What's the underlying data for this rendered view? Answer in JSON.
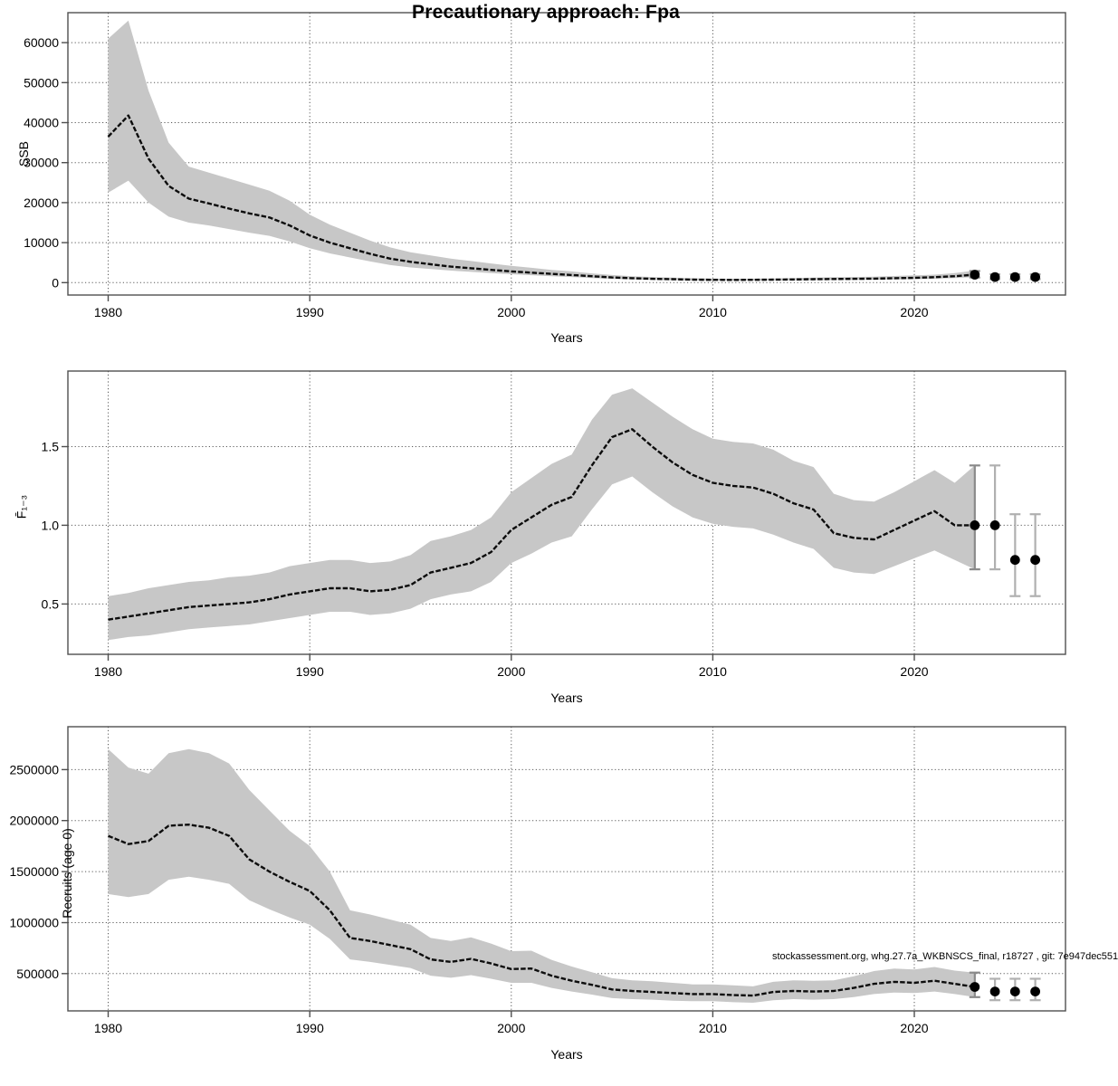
{
  "title": "Precautionary approach: Fpa",
  "xlabel": "Years",
  "annotation": "stockassessment.org, whg.27.7a_WKBNSCS_final, r18727 , git: 7e947dec551",
  "colors": {
    "band": "#c7c7c7",
    "line": "#0d0d0d",
    "grid": "#5a5a5a",
    "frame": "#4f4f4f",
    "errorbar": "#b0b0b0",
    "errorbar_dark": "#8a8a8a",
    "point": "#000000"
  },
  "chart_data": [
    {
      "type": "line",
      "name": "ssb",
      "ylabel": "SSB",
      "xlabel": "Years",
      "grid": true,
      "xlim": [
        1978,
        2027.5
      ],
      "ylim": [
        -3100,
        67500
      ],
      "xticks": [
        1980,
        1990,
        2000,
        2010,
        2020
      ],
      "xtick_labels": [
        "1980",
        "1990",
        "2000",
        "2010",
        "2020"
      ],
      "yticks": [
        0,
        10000,
        20000,
        30000,
        40000,
        50000,
        60000
      ],
      "ytick_labels": [
        "0",
        "10000",
        "20000",
        "30000",
        "40000",
        "50000",
        "60000"
      ],
      "x": [
        1980,
        1981,
        1982,
        1983,
        1984,
        1985,
        1986,
        1987,
        1988,
        1989,
        1990,
        1991,
        1992,
        1993,
        1994,
        1995,
        1996,
        1997,
        1998,
        1999,
        2000,
        2001,
        2002,
        2003,
        2004,
        2005,
        2006,
        2007,
        2008,
        2009,
        2010,
        2011,
        2012,
        2013,
        2014,
        2015,
        2016,
        2017,
        2018,
        2019,
        2020,
        2021,
        2022,
        2023
      ],
      "series": [
        {
          "name": "estimate",
          "values": [
            36500,
            41800,
            31000,
            24200,
            21000,
            19800,
            18500,
            17300,
            16300,
            14300,
            11800,
            10000,
            8600,
            7200,
            6000,
            5200,
            4600,
            4000,
            3600,
            3200,
            2800,
            2500,
            2200,
            1900,
            1600,
            1300,
            1100,
            950,
            850,
            750,
            700,
            680,
            700,
            750,
            800,
            850,
            900,
            950,
            1000,
            1100,
            1200,
            1350,
            1600,
            2000
          ]
        },
        {
          "name": "lower",
          "values": [
            22500,
            25500,
            20000,
            16500,
            15000,
            14300,
            13400,
            12500,
            11700,
            10300,
            8600,
            7300,
            6300,
            5300,
            4400,
            3800,
            3400,
            3000,
            2700,
            2400,
            2100,
            1850,
            1600,
            1400,
            1150,
            950,
            800,
            700,
            620,
            550,
            510,
            500,
            510,
            550,
            580,
            620,
            650,
            690,
            730,
            800,
            870,
            980,
            1150,
            1400
          ]
        },
        {
          "name": "upper",
          "values": [
            61000,
            65500,
            48000,
            35000,
            29000,
            27500,
            26000,
            24500,
            23000,
            20500,
            17000,
            14500,
            12500,
            10500,
            8800,
            7600,
            6800,
            6000,
            5400,
            4800,
            4200,
            3700,
            3200,
            2800,
            2300,
            1900,
            1600,
            1400,
            1250,
            1100,
            1000,
            980,
            1000,
            1050,
            1150,
            1250,
            1350,
            1400,
            1500,
            1650,
            1800,
            2000,
            2400,
            3000
          ]
        }
      ],
      "forecast": {
        "years": [
          2023,
          2024,
          2025,
          2026
        ],
        "values": [
          2000,
          1400,
          1400,
          1400
        ],
        "lower": [
          1300,
          850,
          850,
          850
        ],
        "upper": [
          2900,
          2100,
          2100,
          2100
        ]
      }
    },
    {
      "type": "line",
      "name": "fbar",
      "ylabel": "F̄₁₋₃",
      "xlabel": "Years",
      "grid": true,
      "xlim": [
        1978,
        2027.5
      ],
      "ylim": [
        0.18,
        1.98
      ],
      "xticks": [
        1980,
        1990,
        2000,
        2010,
        2020
      ],
      "xtick_labels": [
        "1980",
        "1990",
        "2000",
        "2010",
        "2020"
      ],
      "yticks": [
        0.5,
        1.0,
        1.5
      ],
      "ytick_labels": [
        "0.5",
        "1.0",
        "1.5"
      ],
      "x": [
        1980,
        1981,
        1982,
        1983,
        1984,
        1985,
        1986,
        1987,
        1988,
        1989,
        1990,
        1991,
        1992,
        1993,
        1994,
        1995,
        1996,
        1997,
        1998,
        1999,
        2000,
        2001,
        2002,
        2003,
        2004,
        2005,
        2006,
        2007,
        2008,
        2009,
        2010,
        2011,
        2012,
        2013,
        2014,
        2015,
        2016,
        2017,
        2018,
        2019,
        2020,
        2021,
        2022,
        2023
      ],
      "series": [
        {
          "name": "estimate",
          "values": [
            0.4,
            0.42,
            0.44,
            0.46,
            0.48,
            0.49,
            0.5,
            0.51,
            0.53,
            0.56,
            0.58,
            0.6,
            0.6,
            0.58,
            0.59,
            0.62,
            0.7,
            0.73,
            0.76,
            0.83,
            0.97,
            1.05,
            1.13,
            1.18,
            1.38,
            1.56,
            1.61,
            1.5,
            1.4,
            1.32,
            1.27,
            1.25,
            1.24,
            1.2,
            1.14,
            1.1,
            0.95,
            0.92,
            0.91,
            0.97,
            1.03,
            1.09,
            1.0,
            1.0
          ]
        },
        {
          "name": "lower",
          "values": [
            0.27,
            0.29,
            0.3,
            0.32,
            0.34,
            0.35,
            0.36,
            0.37,
            0.39,
            0.41,
            0.43,
            0.45,
            0.45,
            0.43,
            0.44,
            0.47,
            0.53,
            0.56,
            0.58,
            0.64,
            0.76,
            0.82,
            0.89,
            0.93,
            1.1,
            1.26,
            1.31,
            1.21,
            1.12,
            1.05,
            1.01,
            0.99,
            0.98,
            0.94,
            0.89,
            0.85,
            0.73,
            0.7,
            0.69,
            0.74,
            0.79,
            0.84,
            0.78,
            0.72
          ]
        },
        {
          "name": "upper",
          "values": [
            0.55,
            0.57,
            0.6,
            0.62,
            0.64,
            0.65,
            0.67,
            0.68,
            0.7,
            0.74,
            0.76,
            0.78,
            0.78,
            0.76,
            0.77,
            0.81,
            0.9,
            0.93,
            0.97,
            1.05,
            1.21,
            1.3,
            1.39,
            1.45,
            1.67,
            1.83,
            1.87,
            1.78,
            1.69,
            1.61,
            1.55,
            1.53,
            1.52,
            1.48,
            1.41,
            1.37,
            1.2,
            1.16,
            1.15,
            1.21,
            1.28,
            1.35,
            1.27,
            1.38
          ]
        }
      ],
      "forecast": {
        "years": [
          2023,
          2024,
          2025,
          2026
        ],
        "values": [
          1.0,
          1.0,
          0.78,
          0.78
        ],
        "lower": [
          0.72,
          0.72,
          0.55,
          0.55
        ],
        "upper": [
          1.38,
          1.38,
          1.07,
          1.07
        ]
      }
    },
    {
      "type": "line",
      "name": "recruits",
      "ylabel": "Recruits (age 0)",
      "xlabel": "Years",
      "grid": true,
      "xlim": [
        1978,
        2027.5
      ],
      "ylim": [
        135000,
        2920000
      ],
      "xticks": [
        1980,
        1990,
        2000,
        2010,
        2020
      ],
      "xtick_labels": [
        "1980",
        "1990",
        "2000",
        "2010",
        "2020"
      ],
      "yticks": [
        500000,
        1000000,
        1500000,
        2000000,
        2500000
      ],
      "ytick_labels": [
        "500000",
        "1000000",
        "1500000",
        "2000000",
        "2500000"
      ],
      "x": [
        1980,
        1981,
        1982,
        1983,
        1984,
        1985,
        1986,
        1987,
        1988,
        1989,
        1990,
        1991,
        1992,
        1993,
        1994,
        1995,
        1996,
        1997,
        1998,
        1999,
        2000,
        2001,
        2002,
        2003,
        2004,
        2005,
        2006,
        2007,
        2008,
        2009,
        2010,
        2011,
        2012,
        2013,
        2014,
        2015,
        2016,
        2017,
        2018,
        2019,
        2020,
        2021,
        2022,
        2023
      ],
      "series": [
        {
          "name": "estimate",
          "values": [
            1850000,
            1770000,
            1800000,
            1950000,
            1960000,
            1930000,
            1850000,
            1620000,
            1500000,
            1400000,
            1310000,
            1120000,
            850000,
            820000,
            780000,
            740000,
            640000,
            615000,
            645000,
            600000,
            545000,
            550000,
            480000,
            430000,
            390000,
            345000,
            330000,
            320000,
            310000,
            300000,
            300000,
            290000,
            285000,
            320000,
            330000,
            325000,
            330000,
            360000,
            400000,
            420000,
            410000,
            430000,
            400000,
            370000
          ]
        },
        {
          "name": "lower",
          "values": [
            1280000,
            1250000,
            1280000,
            1420000,
            1450000,
            1420000,
            1380000,
            1220000,
            1130000,
            1050000,
            980000,
            840000,
            640000,
            615000,
            585000,
            555000,
            480000,
            460000,
            485000,
            450000,
            410000,
            410000,
            360000,
            325000,
            295000,
            260000,
            250000,
            245000,
            235000,
            230000,
            230000,
            220000,
            215000,
            240000,
            250000,
            245000,
            250000,
            270000,
            300000,
            315000,
            310000,
            325000,
            300000,
            270000
          ]
        },
        {
          "name": "upper",
          "values": [
            2700000,
            2520000,
            2460000,
            2660000,
            2700000,
            2660000,
            2560000,
            2300000,
            2100000,
            1900000,
            1750000,
            1500000,
            1120000,
            1080000,
            1030000,
            980000,
            850000,
            820000,
            855000,
            795000,
            720000,
            725000,
            635000,
            570000,
            515000,
            455000,
            435000,
            425000,
            410000,
            395000,
            395000,
            385000,
            375000,
            420000,
            435000,
            430000,
            435000,
            475000,
            525000,
            550000,
            540000,
            565000,
            530000,
            510000
          ]
        }
      ],
      "forecast": {
        "years": [
          2023,
          2024,
          2025,
          2026
        ],
        "values": [
          370000,
          325000,
          325000,
          325000
        ],
        "lower": [
          270000,
          240000,
          240000,
          240000
        ],
        "upper": [
          510000,
          450000,
          450000,
          450000
        ]
      }
    }
  ]
}
